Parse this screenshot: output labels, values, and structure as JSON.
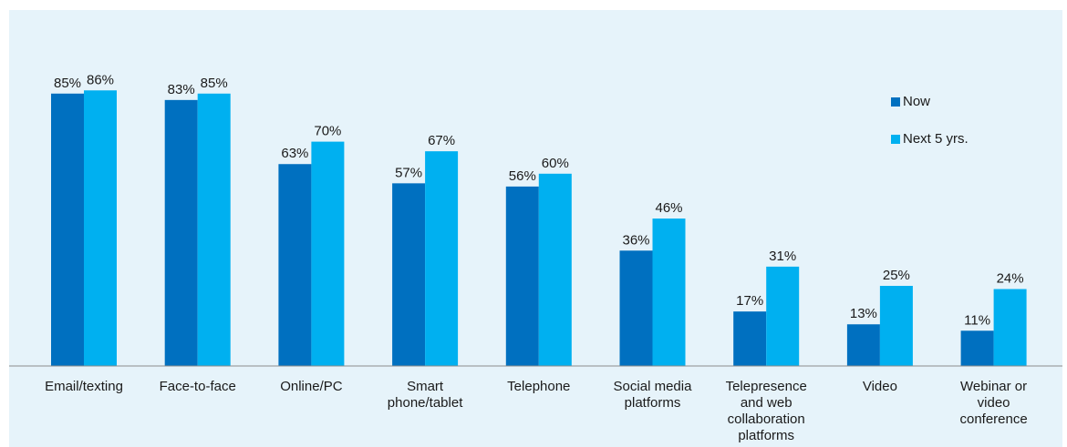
{
  "chart_data": {
    "type": "bar",
    "categories": [
      [
        "Email/texting"
      ],
      [
        "Face-to-face"
      ],
      [
        "Online/PC"
      ],
      [
        "Smart",
        "phone/tablet"
      ],
      [
        "Telephone"
      ],
      [
        "Social media",
        "platforms"
      ],
      [
        "Telepresence",
        "and web",
        "collaboration",
        "platforms"
      ],
      [
        "Video"
      ],
      [
        "Webinar or",
        "video",
        "conference"
      ]
    ],
    "series": [
      {
        "name": "Now",
        "color": "#0070c0",
        "values": [
          85,
          83,
          63,
          57,
          56,
          36,
          17,
          13,
          11
        ]
      },
      {
        "name": "Next 5 yrs.",
        "color": "#00b0f0",
        "values": [
          86,
          85,
          70,
          67,
          60,
          46,
          31,
          25,
          24
        ]
      }
    ],
    "value_suffix": "%",
    "ylim": [
      0,
      100
    ],
    "grid": false,
    "legend": "top-right"
  }
}
